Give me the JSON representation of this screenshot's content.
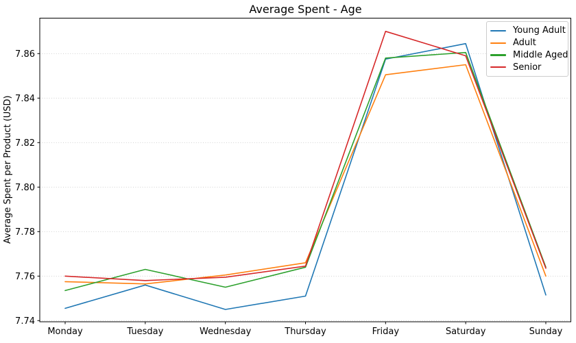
{
  "chart_data": {
    "type": "line",
    "title": "Average Spent - Age",
    "xlabel": "",
    "ylabel": "Average Spent per Product (USD)",
    "categories": [
      "Monday",
      "Tuesday",
      "Wednesday",
      "Thursday",
      "Friday",
      "Saturday",
      "Sunday"
    ],
    "series": [
      {
        "name": "Young Adult",
        "color": "#1f77b4",
        "values": [
          7.7455,
          7.756,
          7.745,
          7.751,
          7.8575,
          7.8645,
          7.7515
        ]
      },
      {
        "name": "Adult",
        "color": "#ff7f0e",
        "values": [
          7.7575,
          7.7565,
          7.7605,
          7.766,
          7.8505,
          7.855,
          7.76
        ]
      },
      {
        "name": "Middle Aged",
        "color": "#2ca02c",
        "values": [
          7.7535,
          7.763,
          7.755,
          7.764,
          7.858,
          7.8605,
          7.764
        ]
      },
      {
        "name": "Senior",
        "color": "#d62728",
        "values": [
          7.76,
          7.758,
          7.7595,
          7.7645,
          7.87,
          7.859,
          7.7635
        ]
      }
    ],
    "yticks": [
      7.74,
      7.76,
      7.78,
      7.8,
      7.82,
      7.84,
      7.86
    ],
    "ytick_labels": [
      "7.74",
      "7.76",
      "7.78",
      "7.80",
      "7.82",
      "7.84",
      "7.86"
    ],
    "ylim": [
      7.7395,
      7.8762
    ],
    "grid": "horizontal-dotted",
    "grid_color": "#c9c9c9",
    "axis_color": "#000000",
    "legend_position": "upper right",
    "legend_labels": [
      "Young Adult",
      "Adult",
      "Middle Aged",
      "Senior"
    ]
  }
}
